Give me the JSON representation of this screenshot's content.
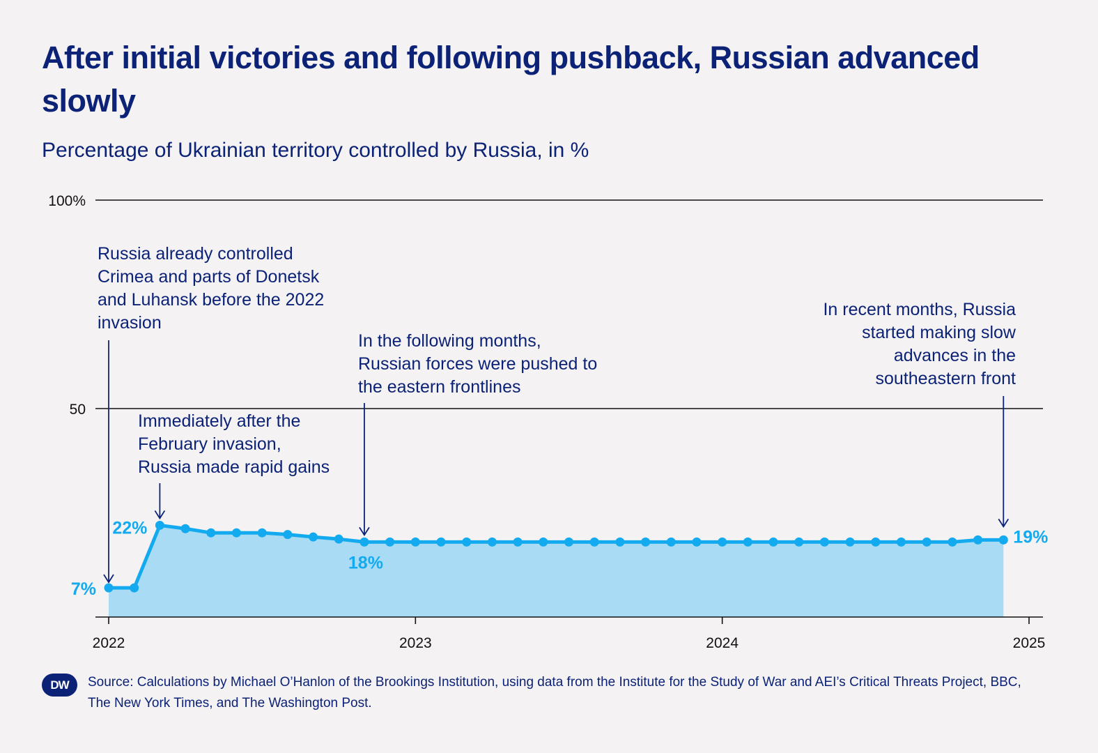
{
  "header": {
    "title": "After initial victories and following pushback, Russian advanced slowly",
    "subtitle": "Percentage of Ukrainian territory controlled by Russia, in %"
  },
  "footer": {
    "logo_text": "DW",
    "source": "Source: Calculations by Michael O’Hanlon of the Brookings Institution, using data from the Institute for the Study of War and AEI’s Critical Threats Project, BBC, The New York Times, and The Washington Post."
  },
  "colors": {
    "text": "#0c2277",
    "series": "#14aaef",
    "area": "#a9dcf4",
    "background": "#f4f2f2"
  },
  "chart_data": {
    "type": "area",
    "title": "After initial victories and following pushback, Russian advanced slowly",
    "subtitle": "Percentage of Ukrainian territory controlled by Russia, in %",
    "ylim": [
      0,
      100
    ],
    "xlim": [
      "2022-01",
      "2025-01"
    ],
    "y_ticks": [
      {
        "value": 100,
        "label": "100%"
      },
      {
        "value": 50,
        "label": "50"
      }
    ],
    "x_ticks": [
      {
        "value": "2022-01",
        "label": "2022"
      },
      {
        "value": "2023-01",
        "label": "2023"
      },
      {
        "value": "2024-01",
        "label": "2024"
      },
      {
        "value": "2025-01",
        "label": "2025"
      }
    ],
    "grid": true,
    "series": [
      {
        "x": [
          "2022-01",
          "2022-02",
          "2022-03",
          "2022-04",
          "2022-05",
          "2022-06",
          "2022-07",
          "2022-08",
          "2022-09",
          "2022-10",
          "2022-11",
          "2022-12",
          "2023-01",
          "2023-02",
          "2023-03",
          "2023-04",
          "2023-05",
          "2023-06",
          "2023-07",
          "2023-08",
          "2023-09",
          "2023-10",
          "2023-11",
          "2023-12",
          "2024-01",
          "2024-02",
          "2024-03",
          "2024-04",
          "2024-05",
          "2024-06",
          "2024-07",
          "2024-08",
          "2024-09",
          "2024-10",
          "2024-11",
          "2024-12"
        ],
        "values": [
          7,
          7,
          22,
          21.2,
          20.2,
          20.2,
          20.2,
          19.8,
          19.2,
          18.7,
          18,
          18,
          18,
          18,
          18,
          18,
          18,
          18,
          18,
          18,
          18,
          18,
          18,
          18,
          18,
          18,
          18,
          18,
          18,
          18,
          18,
          18,
          18,
          18,
          18.5,
          18.5
        ]
      }
    ],
    "value_labels": [
      {
        "x": "2022-01",
        "value": 7,
        "label": "7%"
      },
      {
        "x": "2022-03",
        "value": 22,
        "label": "22%"
      },
      {
        "x": "2022-11",
        "value": 18,
        "label": "18%"
      },
      {
        "x": "2024-12",
        "value": 19,
        "label": "19%"
      }
    ],
    "annotations": [
      {
        "x": "2022-01",
        "target_value": 7,
        "lines": [
          "Russia already controlled",
          "Crimea and parts of Donetsk",
          "and Luhansk before the 2022",
          "invasion"
        ]
      },
      {
        "x": "2022-03",
        "target_value": 22,
        "lines": [
          "Immediately after the",
          "February invasion,",
          "Russia made rapid gains"
        ]
      },
      {
        "x": "2022-11",
        "target_value": 18,
        "lines": [
          "In the following months,",
          "Russian forces were pushed to",
          "the eastern frontlines"
        ]
      },
      {
        "x": "2024-12",
        "target_value": 19,
        "lines": [
          "In recent months, Russia",
          "started making slow",
          "advances in the",
          "southeastern front"
        ]
      }
    ]
  }
}
